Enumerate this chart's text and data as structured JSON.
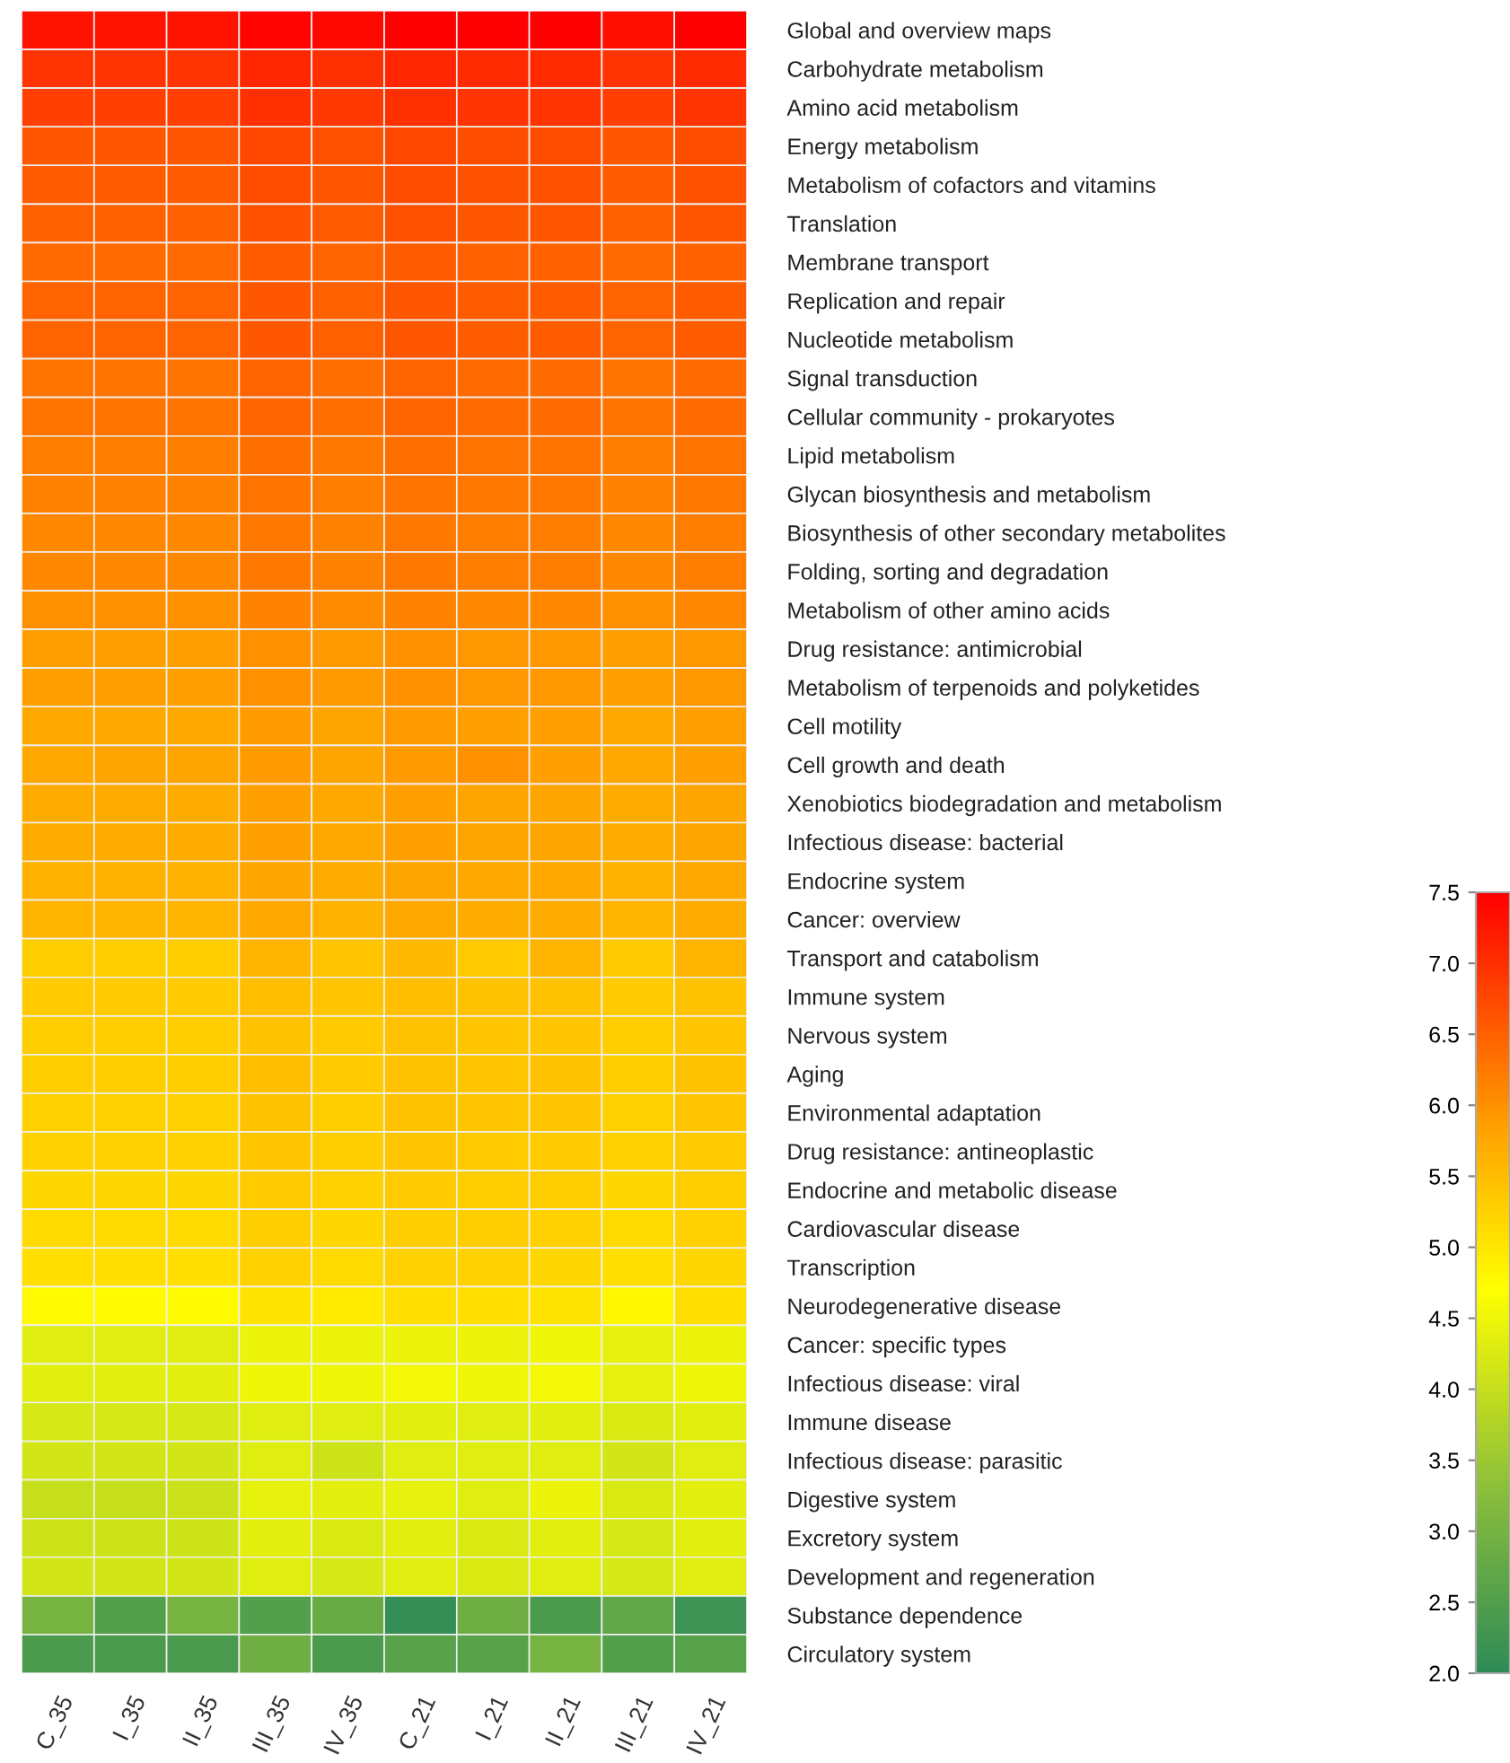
{
  "chart_data": {
    "type": "heatmap",
    "categories": [
      "C_35",
      "I_35",
      "II_35",
      "III_35",
      "IV_35",
      "C_21",
      "I_21",
      "II_21",
      "III_21",
      "IV_21"
    ],
    "y_categories": [
      "Global and overview maps",
      "Carbohydrate metabolism",
      "Amino acid metabolism",
      "Energy metabolism",
      "Metabolism of cofactors and vitamins",
      "Translation",
      "Membrane transport",
      "Replication and repair",
      "Nucleotide metabolism",
      "Signal transduction",
      "Cellular community - prokaryotes",
      "Lipid metabolism",
      "Glycan biosynthesis and metabolism",
      "Biosynthesis of other secondary metabolites",
      "Folding, sorting and degradation",
      "Metabolism of other amino acids",
      "Drug resistance: antimicrobial",
      "Metabolism of terpenoids and polyketides",
      "Cell motility",
      "Cell growth and death",
      "Xenobiotics biodegradation and metabolism",
      "Infectious disease: bacterial",
      "Endocrine system",
      "Cancer: overview",
      "Transport and catabolism",
      "Immune system",
      "Nervous system",
      "Aging",
      "Environmental adaptation",
      "Drug resistance: antineoplastic",
      "Endocrine and metabolic disease",
      "Cardiovascular disease",
      "Transcription",
      "Neurodegenerative disease",
      "Cancer: specific types",
      "Infectious disease: viral",
      "Immune disease",
      "Infectious disease: parasitic",
      "Digestive system",
      "Excretory system",
      "Development and regeneration",
      "Substance dependence",
      "Circulatory system"
    ],
    "cells": [
      [
        7.3,
        7.3,
        7.3,
        7.45,
        7.4,
        7.5,
        7.5,
        7.5,
        7.35,
        7.5
      ],
      [
        6.95,
        6.95,
        6.95,
        7.1,
        7.0,
        7.1,
        7.05,
        7.05,
        6.95,
        7.05
      ],
      [
        6.85,
        6.85,
        6.85,
        7.0,
        6.9,
        7.0,
        6.95,
        6.95,
        6.85,
        6.95
      ],
      [
        6.6,
        6.6,
        6.6,
        6.75,
        6.65,
        6.75,
        6.7,
        6.7,
        6.6,
        6.7
      ],
      [
        6.55,
        6.55,
        6.55,
        6.7,
        6.6,
        6.7,
        6.65,
        6.65,
        6.55,
        6.65
      ],
      [
        6.5,
        6.5,
        6.5,
        6.65,
        6.55,
        6.65,
        6.6,
        6.6,
        6.5,
        6.6
      ],
      [
        6.4,
        6.4,
        6.4,
        6.55,
        6.45,
        6.55,
        6.5,
        6.5,
        6.4,
        6.5
      ],
      [
        6.45,
        6.45,
        6.45,
        6.6,
        6.5,
        6.6,
        6.55,
        6.55,
        6.45,
        6.55
      ],
      [
        6.45,
        6.45,
        6.45,
        6.6,
        6.5,
        6.6,
        6.55,
        6.55,
        6.45,
        6.55
      ],
      [
        6.3,
        6.3,
        6.3,
        6.45,
        6.35,
        6.45,
        6.4,
        6.4,
        6.3,
        6.4
      ],
      [
        6.3,
        6.3,
        6.3,
        6.45,
        6.35,
        6.45,
        6.4,
        6.4,
        6.3,
        6.4
      ],
      [
        6.2,
        6.2,
        6.2,
        6.35,
        6.25,
        6.35,
        6.3,
        6.3,
        6.2,
        6.3
      ],
      [
        6.15,
        6.15,
        6.15,
        6.3,
        6.2,
        6.3,
        6.25,
        6.25,
        6.15,
        6.25
      ],
      [
        6.1,
        6.1,
        6.1,
        6.25,
        6.15,
        6.25,
        6.2,
        6.2,
        6.1,
        6.2
      ],
      [
        6.1,
        6.1,
        6.1,
        6.25,
        6.15,
        6.25,
        6.2,
        6.2,
        6.1,
        6.2
      ],
      [
        6.0,
        6.0,
        6.0,
        6.15,
        6.05,
        6.15,
        6.1,
        6.1,
        6.0,
        6.1
      ],
      [
        5.85,
        5.85,
        5.85,
        6.0,
        5.9,
        6.0,
        5.95,
        5.95,
        5.85,
        5.95
      ],
      [
        5.85,
        5.85,
        5.85,
        6.0,
        5.9,
        6.0,
        5.95,
        5.95,
        5.85,
        5.95
      ],
      [
        5.75,
        5.75,
        5.75,
        5.9,
        5.8,
        5.9,
        5.85,
        5.85,
        5.75,
        5.85
      ],
      [
        5.75,
        5.8,
        5.8,
        5.9,
        5.8,
        5.9,
        6.0,
        5.85,
        5.75,
        5.85
      ],
      [
        5.7,
        5.7,
        5.7,
        5.85,
        5.75,
        5.85,
        5.8,
        5.8,
        5.7,
        5.8
      ],
      [
        5.7,
        5.7,
        5.7,
        5.85,
        5.75,
        5.85,
        5.8,
        5.8,
        5.7,
        5.8
      ],
      [
        5.65,
        5.65,
        5.65,
        5.8,
        5.7,
        5.8,
        5.75,
        5.75,
        5.65,
        5.75
      ],
      [
        5.6,
        5.6,
        5.6,
        5.75,
        5.65,
        5.75,
        5.7,
        5.7,
        5.6,
        5.7
      ],
      [
        5.3,
        5.3,
        5.3,
        5.6,
        5.4,
        5.55,
        5.35,
        5.6,
        5.35,
        5.6
      ],
      [
        5.35,
        5.35,
        5.35,
        5.5,
        5.4,
        5.5,
        5.45,
        5.45,
        5.35,
        5.45
      ],
      [
        5.3,
        5.3,
        5.3,
        5.45,
        5.35,
        5.45,
        5.4,
        5.4,
        5.3,
        5.4
      ],
      [
        5.3,
        5.3,
        5.3,
        5.5,
        5.35,
        5.45,
        5.4,
        5.45,
        5.3,
        5.45
      ],
      [
        5.25,
        5.25,
        5.25,
        5.45,
        5.3,
        5.45,
        5.4,
        5.4,
        5.25,
        5.4
      ],
      [
        5.25,
        5.25,
        5.25,
        5.4,
        5.3,
        5.4,
        5.35,
        5.35,
        5.25,
        5.35
      ],
      [
        5.2,
        5.2,
        5.2,
        5.35,
        5.25,
        5.35,
        5.3,
        5.3,
        5.2,
        5.3
      ],
      [
        5.15,
        5.15,
        5.15,
        5.3,
        5.2,
        5.3,
        5.3,
        5.25,
        5.15,
        5.25
      ],
      [
        5.1,
        5.1,
        5.1,
        5.25,
        5.15,
        5.25,
        5.25,
        5.2,
        5.1,
        5.2
      ],
      [
        4.75,
        4.75,
        4.75,
        5.05,
        4.95,
        5.1,
        5.1,
        5.05,
        4.8,
        5.1
      ],
      [
        4.3,
        4.3,
        4.3,
        4.45,
        4.45,
        4.45,
        4.45,
        4.5,
        4.4,
        4.45
      ],
      [
        4.35,
        4.35,
        4.35,
        4.5,
        4.5,
        4.55,
        4.5,
        4.55,
        4.4,
        4.5
      ],
      [
        4.2,
        4.2,
        4.2,
        4.3,
        4.3,
        4.35,
        4.3,
        4.35,
        4.25,
        4.35
      ],
      [
        4.15,
        4.15,
        4.15,
        4.3,
        4.1,
        4.3,
        4.3,
        4.3,
        4.15,
        4.3
      ],
      [
        4.0,
        4.0,
        4.05,
        4.4,
        4.35,
        4.4,
        4.3,
        4.45,
        4.25,
        4.35
      ],
      [
        4.1,
        4.1,
        4.1,
        4.35,
        4.25,
        4.35,
        4.25,
        4.35,
        4.2,
        4.35
      ],
      [
        4.15,
        4.15,
        4.15,
        4.3,
        4.2,
        4.3,
        4.25,
        4.3,
        4.2,
        4.3
      ],
      [
        3.0,
        2.5,
        3.0,
        2.5,
        2.8,
        2.1,
        2.9,
        2.4,
        2.7,
        2.2
      ],
      [
        2.4,
        2.4,
        2.4,
        2.9,
        2.4,
        2.6,
        2.6,
        3.0,
        2.5,
        2.6
      ]
    ],
    "clim": [
      2.0,
      7.5
    ],
    "cticks": [
      {
        "value": 2,
        "label": "2.0"
      },
      2.5,
      {
        "value": 3,
        "label": "3.0"
      },
      3.5,
      {
        "value": 4,
        "label": "4.0"
      },
      4.5,
      {
        "value": 5,
        "label": "5.0"
      },
      5.5,
      {
        "value": 6,
        "label": "6.0"
      },
      6.5,
      {
        "value": 7,
        "label": "7.0"
      },
      7.5
    ]
  }
}
